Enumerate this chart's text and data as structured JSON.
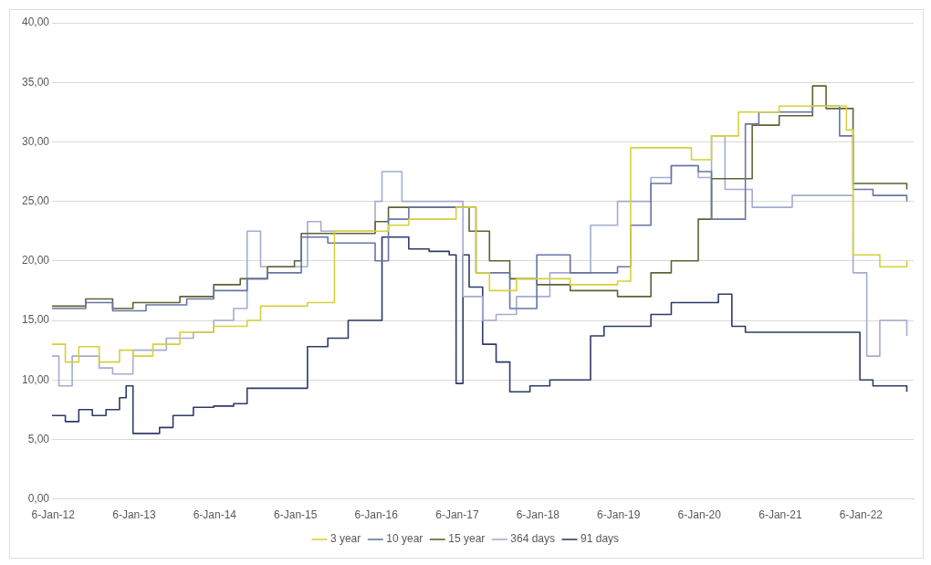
{
  "chart_data": {
    "type": "step",
    "legend": "bottom",
    "grid": "y",
    "marker": "none",
    "xlim": [
      "2012-01-01",
      "2022-09-01"
    ],
    "xticks": [
      {
        "value": "2012-01-06",
        "label": "6-Jan-12"
      },
      {
        "value": "2013-01-06",
        "label": "6-Jan-13"
      },
      {
        "value": "2014-01-06",
        "label": "6-Jan-14"
      },
      {
        "value": "2015-01-06",
        "label": "6-Jan-15"
      },
      {
        "value": "2016-01-06",
        "label": "6-Jan-16"
      },
      {
        "value": "2017-01-06",
        "label": "6-Jan-17"
      },
      {
        "value": "2018-01-06",
        "label": "6-Jan-18"
      },
      {
        "value": "2019-01-06",
        "label": "6-Jan-19"
      },
      {
        "value": "2020-01-06",
        "label": "6-Jan-20"
      },
      {
        "value": "2021-01-06",
        "label": "6-Jan-21"
      },
      {
        "value": "2022-01-06",
        "label": "6-Jan-22"
      }
    ],
    "ylim": [
      0,
      40
    ],
    "yticks": [
      {
        "value": 0,
        "label": "0,00"
      },
      {
        "value": 5,
        "label": "5,00"
      },
      {
        "value": 10,
        "label": "10,00"
      },
      {
        "value": 15,
        "label": "15,00"
      },
      {
        "value": 20,
        "label": "20,00"
      },
      {
        "value": 25,
        "label": "25,00"
      },
      {
        "value": 30,
        "label": "30,00"
      },
      {
        "value": 35,
        "label": "35,00"
      },
      {
        "value": 40,
        "label": "40,00"
      }
    ],
    "series": [
      {
        "name": "3 year",
        "color": "#d6d03c",
        "x": [
          "2012-01",
          "2012-03",
          "2012-05",
          "2012-08",
          "2012-11",
          "2013-01",
          "2013-04",
          "2013-08",
          "2014-01",
          "2014-06",
          "2014-08",
          "2015-03",
          "2015-07",
          "2016-03",
          "2016-06",
          "2017-01",
          "2017-04",
          "2017-06",
          "2017-10",
          "2018-06",
          "2019-01",
          "2019-03",
          "2019-09",
          "2019-12",
          "2020-03",
          "2020-07",
          "2021-01",
          "2021-09",
          "2021-11",
          "2021-12",
          "2022-04",
          "2022-08"
        ],
        "values": [
          13,
          11.5,
          12.8,
          11.5,
          12.5,
          12,
          13,
          14,
          14.5,
          15,
          16.2,
          16.5,
          22.5,
          23,
          23.5,
          24.5,
          19,
          17.5,
          18.5,
          18,
          18.3,
          29.5,
          29.5,
          28.5,
          30.5,
          32.5,
          33,
          33,
          31,
          20.5,
          19.5,
          20
        ]
      },
      {
        "name": "10 year",
        "color": "#6874a4",
        "x": [
          "2012-01",
          "2012-06",
          "2012-10",
          "2013-03",
          "2013-09",
          "2014-01",
          "2014-06",
          "2014-09",
          "2015-02",
          "2015-06",
          "2016-01",
          "2016-03",
          "2016-06",
          "2017-01",
          "2017-04",
          "2017-09",
          "2018-01",
          "2018-06",
          "2019-01",
          "2019-03",
          "2019-06",
          "2019-09",
          "2020-01",
          "2020-03",
          "2020-08",
          "2020-10",
          "2021-06",
          "2021-10",
          "2021-12",
          "2022-03",
          "2022-08"
        ],
        "values": [
          16,
          16.5,
          15.8,
          16.3,
          16.8,
          17.5,
          18.5,
          19,
          22,
          21.5,
          20,
          23.5,
          24.5,
          24.5,
          19,
          16,
          20.5,
          19,
          19.5,
          23,
          26.5,
          28,
          27.5,
          23.5,
          31.5,
          32.5,
          33,
          30.5,
          26,
          25.5,
          25
        ]
      },
      {
        "name": "15 year",
        "color": "#5d6332",
        "x": [
          "2012-01",
          "2012-06",
          "2012-10",
          "2013-01",
          "2013-08",
          "2014-01",
          "2014-05",
          "2014-09",
          "2015-01",
          "2015-02",
          "2016-01",
          "2016-03",
          "2016-12",
          "2017-03",
          "2017-06",
          "2017-09",
          "2018-01",
          "2018-06",
          "2019-01",
          "2019-06",
          "2019-09",
          "2020-01",
          "2020-03",
          "2020-06",
          "2020-09",
          "2021-01",
          "2021-06",
          "2021-08",
          "2021-10",
          "2021-12",
          "2022-08"
        ],
        "values": [
          16.2,
          16.8,
          16,
          16.5,
          17,
          18,
          18.5,
          19.5,
          20,
          22.3,
          23.3,
          24.5,
          24.5,
          22.5,
          20,
          18.5,
          18,
          17.5,
          17,
          19,
          20,
          23.5,
          26.9,
          26.9,
          31.4,
          32.2,
          34.7,
          32.8,
          32.8,
          26.5,
          26
        ]
      },
      {
        "name": "364 days",
        "color": "#a3acd0",
        "x": [
          "2012-01",
          "2012-02",
          "2012-04",
          "2012-08",
          "2012-10",
          "2013-01",
          "2013-06",
          "2013-10",
          "2014-01",
          "2014-04",
          "2014-06",
          "2014-08",
          "2015-01",
          "2015-03",
          "2015-05",
          "2015-10",
          "2016-01",
          "2016-02",
          "2016-05",
          "2016-12",
          "2017-02",
          "2017-05",
          "2017-07",
          "2017-10",
          "2018-03",
          "2018-09",
          "2019-01",
          "2019-06",
          "2019-09",
          "2020-01",
          "2020-03",
          "2020-05",
          "2020-09",
          "2021-03",
          "2021-10",
          "2021-12",
          "2022-02",
          "2022-04",
          "2022-08"
        ],
        "values": [
          12,
          9.5,
          12,
          11,
          10.5,
          12.5,
          13.5,
          14,
          15,
          16,
          22.5,
          19.5,
          19.5,
          23.3,
          22.5,
          22.5,
          25,
          27.5,
          25,
          25,
          17,
          15,
          15.5,
          17,
          19,
          23,
          25,
          27,
          28,
          27,
          30.5,
          26,
          24.5,
          25.5,
          25.5,
          19,
          12,
          15,
          13.7
        ]
      },
      {
        "name": "91 days",
        "color": "#2f3b66",
        "x": [
          "2012-01",
          "2012-03",
          "2012-05",
          "2012-07",
          "2012-09",
          "2012-11",
          "2012-12",
          "2013-01",
          "2013-05",
          "2013-07",
          "2013-10",
          "2014-01",
          "2014-04",
          "2014-06",
          "2015-03",
          "2015-06",
          "2015-09",
          "2016-02",
          "2016-06",
          "2016-09",
          "2016-12",
          "2017-01",
          "2017-02",
          "2017-03",
          "2017-05",
          "2017-07",
          "2017-09",
          "2017-12",
          "2018-03",
          "2018-09",
          "2018-11",
          "2019-06",
          "2019-09",
          "2020-03",
          "2020-04",
          "2020-06",
          "2020-08",
          "2021-11",
          "2022-01",
          "2022-03",
          "2022-08"
        ],
        "values": [
          7,
          6.5,
          7.5,
          7,
          7.5,
          8.5,
          9.5,
          5.5,
          6,
          7,
          7.7,
          7.8,
          8,
          9.3,
          12.8,
          13.5,
          15,
          22,
          21,
          20.8,
          20.5,
          9.7,
          20.5,
          17.8,
          13,
          11.5,
          9,
          9.5,
          10,
          13.7,
          14.5,
          15.5,
          16.5,
          16.5,
          17.2,
          14.5,
          14,
          14,
          10,
          9.5,
          9
        ]
      }
    ]
  }
}
